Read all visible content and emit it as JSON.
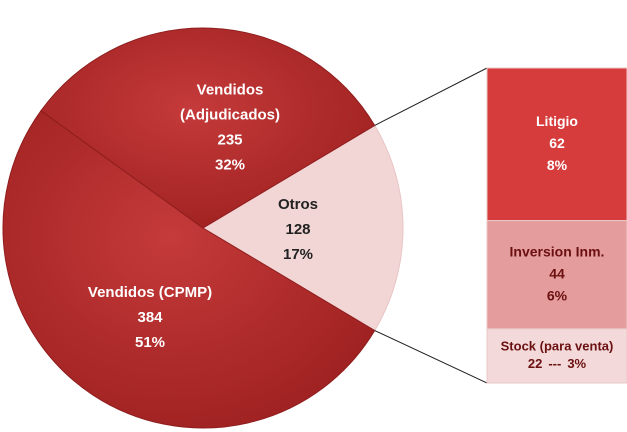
{
  "chart_data": {
    "type": "pie",
    "slices": [
      {
        "label": [
          "Otros"
        ],
        "value": 128,
        "percent_label": "17%",
        "color": "#f2d6d6"
      },
      {
        "label": [
          "Vendidos (CPMP)"
        ],
        "value": 384,
        "percent_label": "51%",
        "color": "#b12a2a"
      },
      {
        "label": [
          "Vendidos",
          "(Adjudicados)"
        ],
        "value": 235,
        "percent_label": "32%",
        "color": "#b12a2a"
      }
    ],
    "breakdown": {
      "of": "Otros",
      "separator": "---",
      "items": [
        {
          "label": "Litigio",
          "value": 62,
          "percent_label": "8%",
          "color": "#d63c3c"
        },
        {
          "label": "Inversion Inm.",
          "value": 44,
          "percent_label": "6%",
          "color": "#e59c9c"
        },
        {
          "label": "Stock (para venta)",
          "value": 22,
          "percent_label": "3%",
          "color": "#f3d9d9"
        }
      ]
    }
  }
}
